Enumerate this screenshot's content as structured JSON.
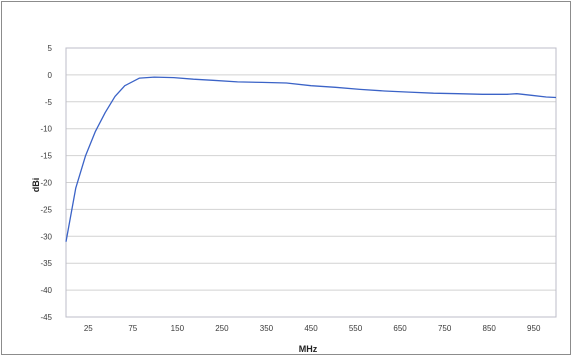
{
  "chart_data": {
    "type": "line",
    "title": "",
    "xlabel": "MHz",
    "ylabel": "dBi",
    "y_tick_labels": [
      "5",
      "0",
      "-5",
      "-10",
      "-15",
      "-20",
      "-25",
      "-30",
      "-35",
      "-40",
      "-45"
    ],
    "y_tick_values": [
      5,
      0,
      -5,
      -10,
      -15,
      -20,
      -25,
      -30,
      -35,
      -40,
      -45
    ],
    "x_tick_labels": [
      "25",
      "75",
      "150",
      "250",
      "350",
      "450",
      "550",
      "650",
      "750",
      "850",
      "950"
    ],
    "ylim": [
      -45,
      5
    ],
    "grid": "horizontal",
    "legend": "none",
    "colors": {
      "line": "#3b63c7",
      "grid": "#d2d2d2",
      "plot_border": "#bdbdc8",
      "frame_border": "#8c8c8c"
    },
    "series": [
      {
        "x": [
          0,
          0.02,
          0.04,
          0.06,
          0.08,
          0.1,
          0.12,
          0.15,
          0.18,
          0.22,
          0.26,
          0.3,
          0.35,
          0.4,
          0.45,
          0.5,
          0.55,
          0.6,
          0.65,
          0.7,
          0.75,
          0.8,
          0.85,
          0.9,
          0.92,
          0.95,
          0.98,
          1.0
        ],
        "values": [
          -31,
          -21,
          -15,
          -10.5,
          -7,
          -4,
          -2,
          -0.6,
          -0.4,
          -0.5,
          -0.8,
          -1.0,
          -1.3,
          -1.4,
          -1.5,
          -2.0,
          -2.3,
          -2.7,
          -3.0,
          -3.2,
          -3.4,
          -3.5,
          -3.6,
          -3.6,
          -3.5,
          -3.8,
          -4.1,
          -4.2
        ]
      }
    ]
  }
}
